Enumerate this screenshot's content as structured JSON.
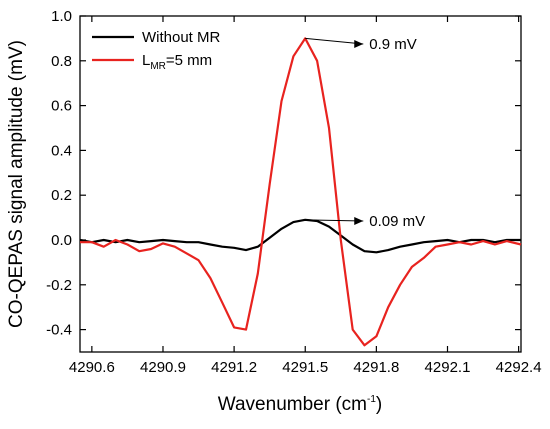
{
  "chart_data": {
    "type": "line",
    "xlabel": "Wavenumber (cm",
    "xlabel_sup": "-1",
    "xlabel_close": ")",
    "ylabel": "CO-QEPAS signal amplitude (mV)",
    "xlim": [
      4290.55,
      4292.41
    ],
    "ylim": [
      -0.5,
      1.0
    ],
    "xticks": [
      4290.6,
      4290.9,
      4291.2,
      4291.5,
      4291.8,
      4292.1,
      4292.4
    ],
    "xtick_labels": [
      "4290.6",
      "4290.9",
      "4291.2",
      "4291.5",
      "4291.8",
      "4292.1",
      "4292.4"
    ],
    "yticks": [
      -0.4,
      -0.2,
      0.0,
      0.2,
      0.4,
      0.6,
      0.8,
      1.0
    ],
    "ytick_labels": [
      "-0.4",
      "-0.2",
      "0.0",
      "0.2",
      "0.4",
      "0.6",
      "0.8",
      "1.0"
    ],
    "grid": false,
    "legend_position": "top-left",
    "series": [
      {
        "name": "Without MR",
        "color": "#000000",
        "x": [
          4290.55,
          4290.6,
          4290.65,
          4290.7,
          4290.75,
          4290.8,
          4290.85,
          4290.9,
          4290.95,
          4291.0,
          4291.05,
          4291.1,
          4291.15,
          4291.2,
          4291.25,
          4291.3,
          4291.35,
          4291.4,
          4291.45,
          4291.5,
          4291.55,
          4291.6,
          4291.65,
          4291.7,
          4291.75,
          4291.8,
          4291.85,
          4291.9,
          4291.95,
          4292.0,
          4292.05,
          4292.1,
          4292.15,
          4292.2,
          4292.25,
          4292.3,
          4292.35,
          4292.41
        ],
        "y": [
          0.0,
          -0.01,
          0.0,
          -0.01,
          0.0,
          -0.01,
          -0.005,
          0.0,
          -0.005,
          -0.01,
          -0.01,
          -0.02,
          -0.03,
          -0.035,
          -0.045,
          -0.03,
          0.01,
          0.05,
          0.08,
          0.09,
          0.085,
          0.06,
          0.02,
          -0.02,
          -0.05,
          -0.055,
          -0.045,
          -0.03,
          -0.02,
          -0.01,
          -0.005,
          0.0,
          -0.01,
          0.0,
          0.0,
          -0.01,
          0.0,
          0.0
        ]
      },
      {
        "name": "L",
        "name_sub": "MR",
        "name_rest": "=5 mm",
        "color": "#e8231f",
        "x": [
          4290.55,
          4290.6,
          4290.65,
          4290.7,
          4290.75,
          4290.8,
          4290.85,
          4290.9,
          4290.95,
          4291.0,
          4291.05,
          4291.1,
          4291.15,
          4291.2,
          4291.25,
          4291.3,
          4291.35,
          4291.4,
          4291.45,
          4291.5,
          4291.55,
          4291.6,
          4291.65,
          4291.7,
          4291.75,
          4291.8,
          4291.85,
          4291.9,
          4291.95,
          4292.0,
          4292.05,
          4292.1,
          4292.15,
          4292.2,
          4292.25,
          4292.3,
          4292.35,
          4292.41
        ],
        "y": [
          -0.01,
          -0.01,
          -0.03,
          0.0,
          -0.02,
          -0.05,
          -0.04,
          -0.015,
          -0.03,
          -0.06,
          -0.09,
          -0.17,
          -0.28,
          -0.39,
          -0.4,
          -0.15,
          0.25,
          0.62,
          0.82,
          0.9,
          0.8,
          0.5,
          0.0,
          -0.4,
          -0.47,
          -0.43,
          -0.3,
          -0.2,
          -0.12,
          -0.08,
          -0.03,
          -0.02,
          -0.01,
          -0.02,
          -0.005,
          -0.02,
          -0.005,
          -0.02
        ]
      }
    ],
    "annotations": [
      {
        "text": "0.9 mV",
        "x": 4291.5,
        "y": 0.9,
        "text_x": 4291.77,
        "text_y": 0.875
      },
      {
        "text": "0.09 mV",
        "x": 4291.5,
        "y": 0.09,
        "text_x": 4291.77,
        "text_y": 0.085
      }
    ]
  }
}
